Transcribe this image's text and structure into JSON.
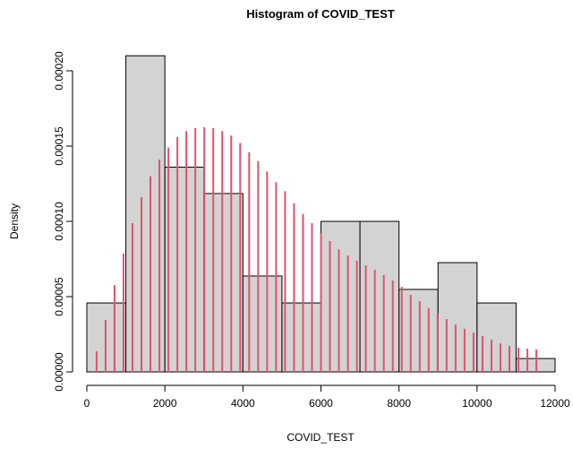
{
  "chart_data": {
    "type": "histogram",
    "title": "Histogram of COVID_TEST",
    "x_label": "COVID_TEST",
    "y_label": "Density",
    "bins": [
      0,
      1000,
      2000,
      3000,
      4000,
      5000,
      6000,
      7000,
      8000,
      9000,
      10000,
      11000,
      12000
    ],
    "values": [
      4.58e-05,
      0.00021,
      0.000136,
      0.0001185,
      6.37e-05,
      4.58e-05,
      0.0001,
      0.0001,
      5.48e-05,
      7.26e-05,
      4.58e-05,
      8.9e-06
    ],
    "color": "#d3d3d3",
    "density": {
      "color": "#df536b",
      "x": [
        250,
        480,
        710,
        940,
        1170,
        1400,
        1630,
        1860,
        2090,
        2320,
        2550,
        2780,
        3010,
        3240,
        3470,
        3700,
        3930,
        4160,
        4390,
        4620,
        4850,
        5080,
        5310,
        5540,
        5770,
        6000,
        6230,
        6460,
        6690,
        6920,
        7150,
        7380,
        7610,
        7840,
        8070,
        8300,
        8530,
        8760,
        8990,
        9220,
        9450,
        9680,
        9910,
        10140,
        10370,
        10600,
        10830,
        11060,
        11290,
        11520
      ],
      "values": [
        1.37e-05,
        3.45e-05,
        5.77e-05,
        7.86e-05,
        9.88e-05,
        0.000116,
        0.00013,
        0.000141,
        0.000149,
        0.000156,
        0.00016,
        0.000162,
        0.0001625,
        0.000162,
        0.00016,
        0.000157,
        0.000152,
        0.000146,
        0.00014,
        0.000133,
        0.000126,
        0.00012,
        0.000112,
        0.000105,
        9.88e-05,
        9.23e-05,
        8.69e-05,
        8.15e-05,
        7.74e-05,
        7.38e-05,
        7.08e-05,
        6.79e-05,
        6.43e-05,
        6.07e-05,
        5.65e-05,
        5.12e-05,
        4.7e-05,
        4.23e-05,
        3.87e-05,
        3.51e-05,
        3.15e-05,
        2.86e-05,
        2.62e-05,
        2.38e-05,
        2.14e-05,
        1.9e-05,
        1.73e-05,
        1.61e-05,
        1.55e-05,
        1.49e-05
      ]
    },
    "xlim": [
      0,
      12000
    ],
    "xticks": [
      0,
      2000,
      4000,
      6000,
      8000,
      10000,
      12000
    ],
    "ylim": [
      0,
      0.0002
    ],
    "yticks": [
      {
        "value": 0,
        "label": "0.00000"
      },
      {
        "value": 5e-05,
        "label": "0.00005"
      },
      {
        "value": 0.0001,
        "label": "0.00010"
      },
      {
        "value": 0.00015,
        "label": "0.00015"
      },
      {
        "value": 0.0002,
        "label": "0.00020"
      }
    ]
  }
}
